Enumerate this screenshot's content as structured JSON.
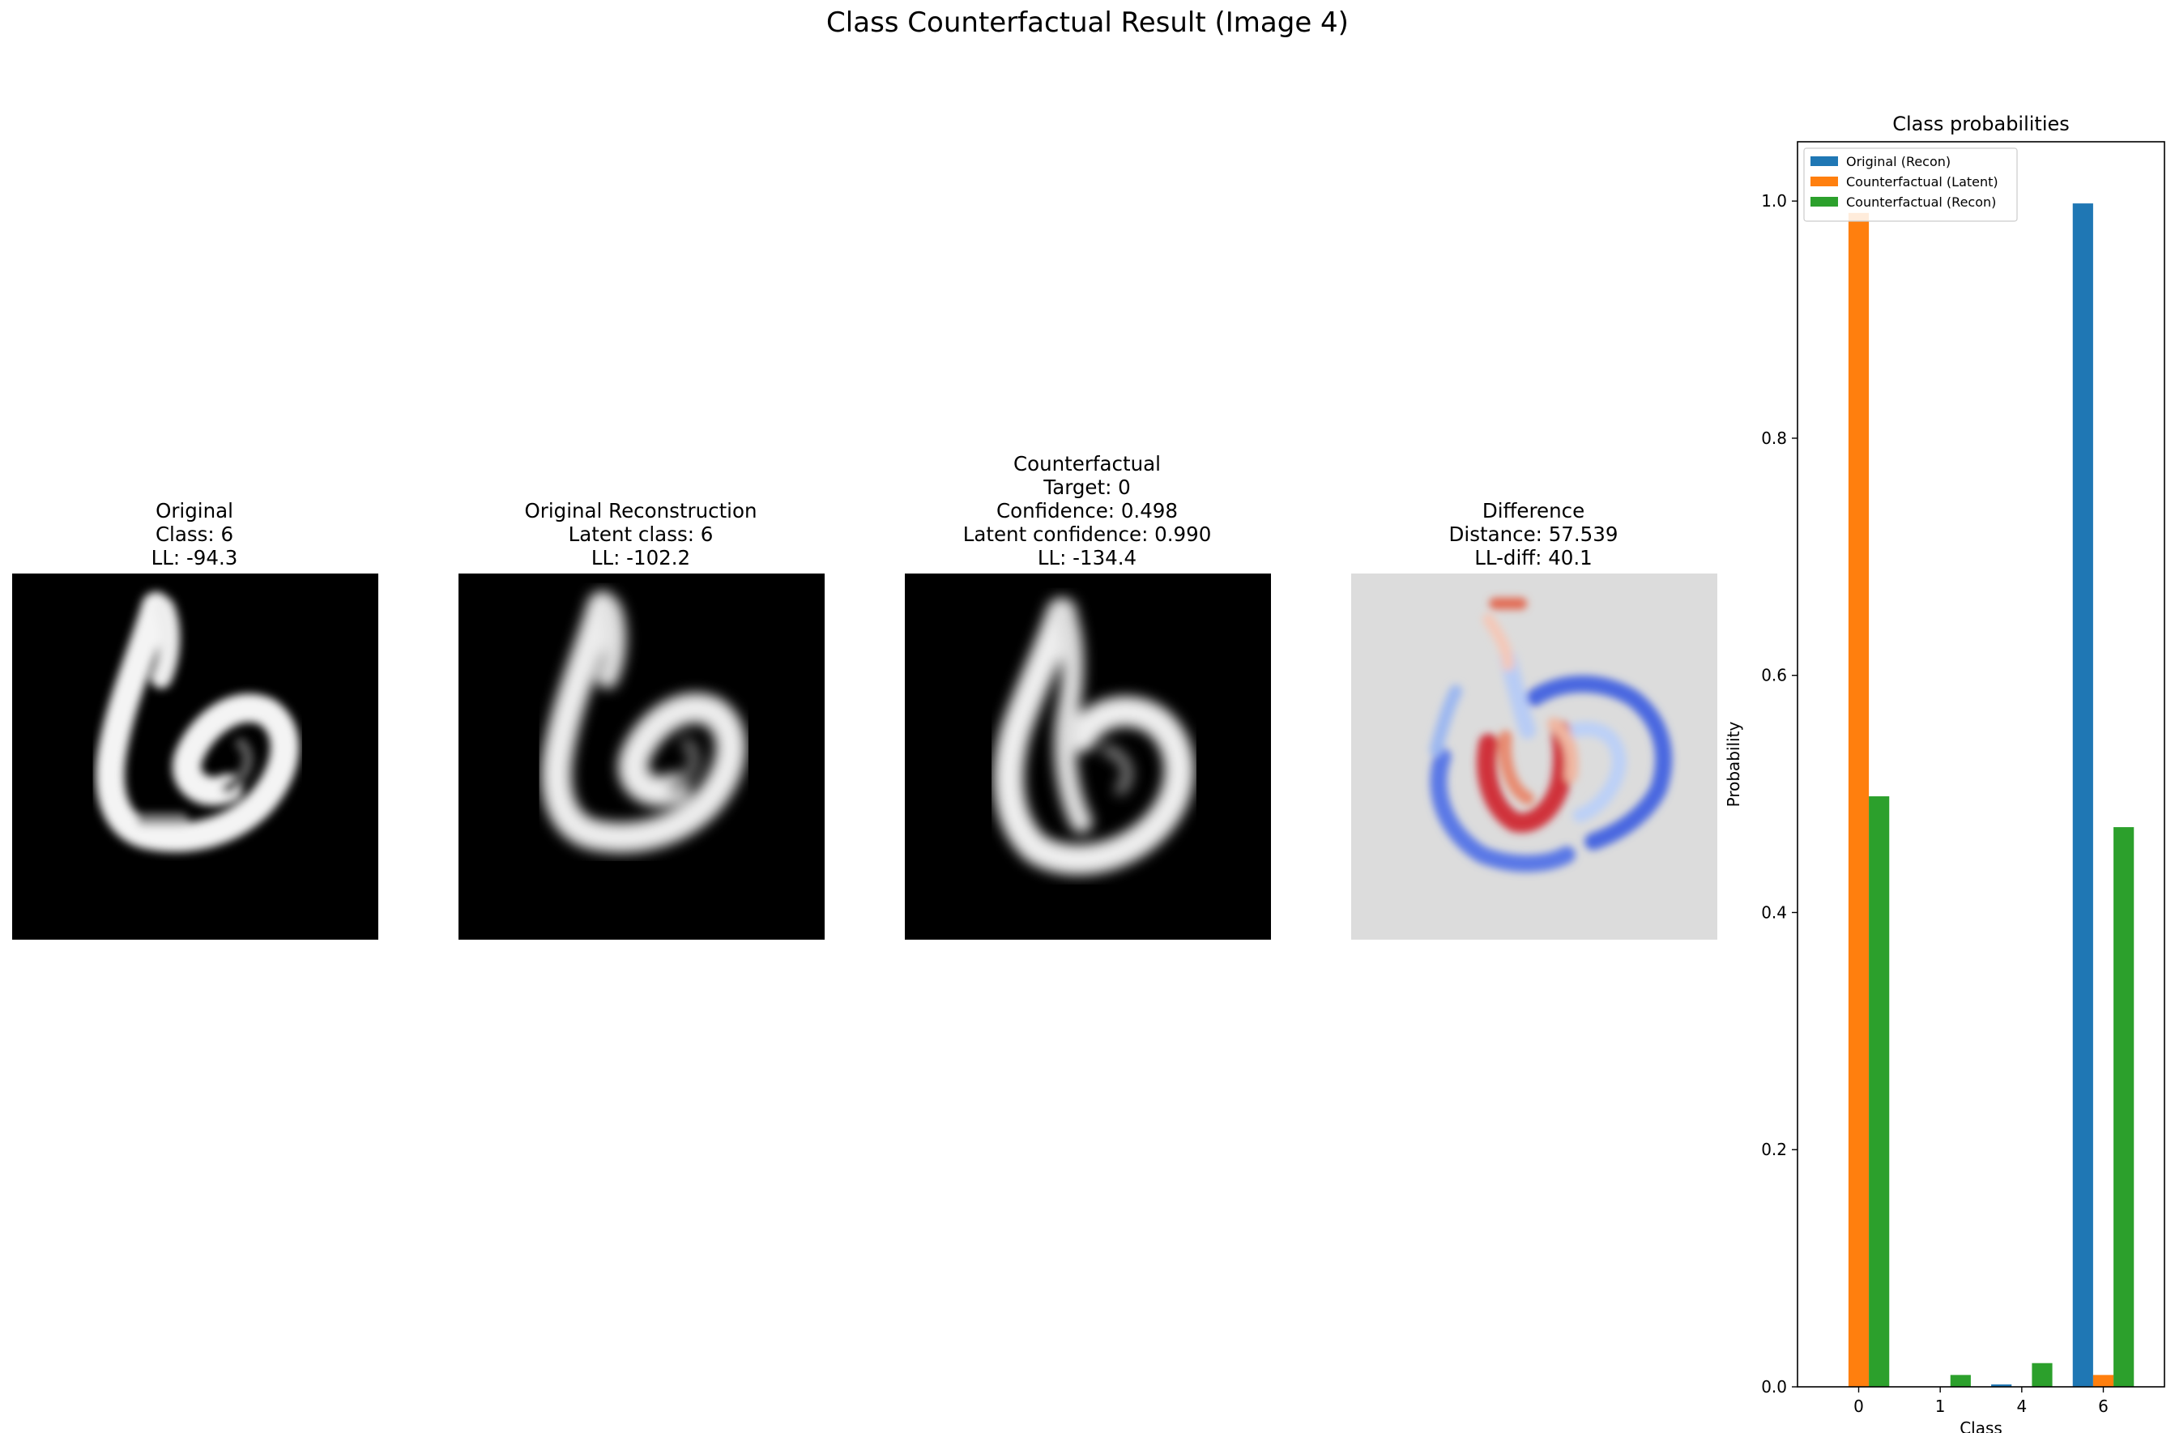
{
  "figure": {
    "suptitle": "Class Counterfactual Result (Image 4)"
  },
  "panels": [
    {
      "title_lines": [
        "Original",
        "Class: 6",
        "LL: -94.3"
      ],
      "image": "digit-6-grayscale"
    },
    {
      "title_lines": [
        "Original Reconstruction",
        "Latent class: 6",
        "LL: -102.2"
      ],
      "image": "digit-6-reconstruction-grayscale"
    },
    {
      "title_lines": [
        "Counterfactual",
        "Target: 0",
        "Confidence: 0.498",
        "Latent confidence: 0.990",
        "LL: -134.4"
      ],
      "image": "counterfactual-digit-grayscale"
    },
    {
      "title_lines": [
        "Difference",
        "Distance: 57.539",
        "LL-diff: 40.1"
      ],
      "image": "difference-heatmap-coolwarm"
    }
  ],
  "chart_data": {
    "type": "bar",
    "title": "Class probabilities",
    "xlabel": "Class",
    "ylabel": "Probability",
    "categories": [
      "0",
      "1",
      "4",
      "6"
    ],
    "ylim": [
      0,
      1.05
    ],
    "yticks": [
      "0.0",
      "0.2",
      "0.4",
      "0.6",
      "0.8",
      "1.0"
    ],
    "legend_position": "top-left",
    "series": [
      {
        "name": "Original (Recon)",
        "color": "#1f77b4",
        "values": [
          0.0,
          0.0,
          0.002,
          0.998
        ]
      },
      {
        "name": "Counterfactual (Latent)",
        "color": "#ff7f0e",
        "values": [
          0.99,
          0.0,
          0.0,
          0.01
        ]
      },
      {
        "name": "Counterfactual (Recon)",
        "color": "#2ca02c",
        "values": [
          0.498,
          0.01,
          0.02,
          0.472
        ]
      }
    ]
  }
}
